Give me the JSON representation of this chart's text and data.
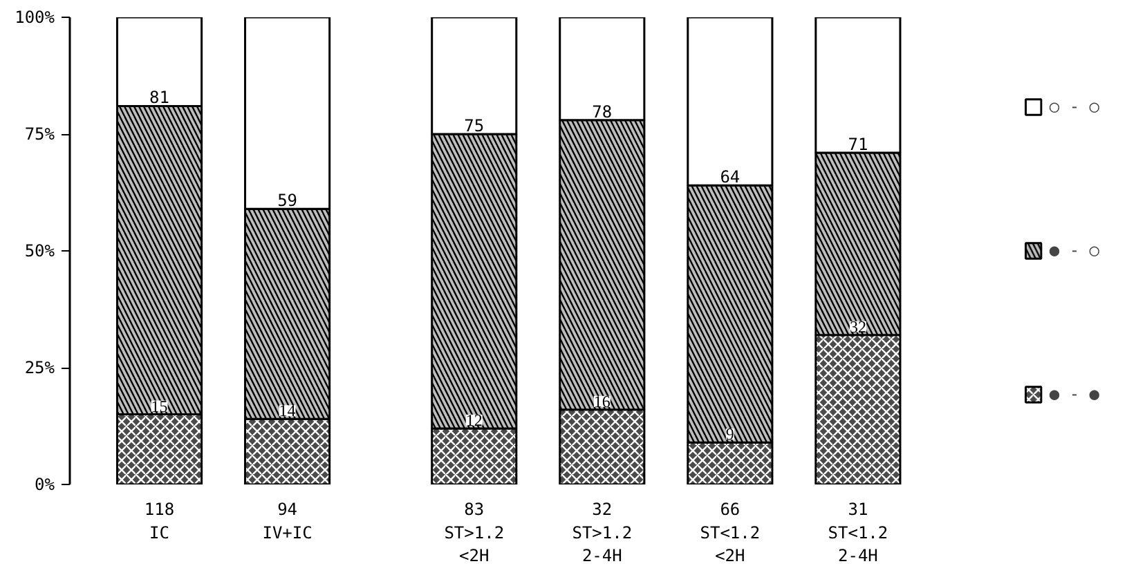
{
  "chart_data": {
    "type": "bar",
    "stacked": true,
    "categories": [
      "118\nIC",
      "94\nIV+IC",
      "83\nST>1.2\n<2H",
      "32\nST>1.2\n2-4H",
      "66\nST<1.2\n<2H",
      "31\nST<1.2\n2-4H"
    ],
    "series": [
      {
        "name": "● - ●",
        "color": "#4a4a4a",
        "values": [
          15,
          14,
          12,
          16,
          9,
          32
        ],
        "value_labels": [
          "15",
          "14",
          "12",
          "16",
          "9",
          "32"
        ]
      },
      {
        "name": "● - ○",
        "color": "#bdbdbd",
        "values": [
          66,
          45,
          63,
          62,
          55,
          39
        ]
      },
      {
        "name": "○ - ○",
        "color": "#ffffff",
        "values": [
          19,
          41,
          25,
          22,
          36,
          29
        ]
      }
    ],
    "ylim": [
      0,
      100
    ],
    "yticks": [
      {
        "value": 0,
        "label": "0%"
      },
      {
        "value": 25,
        "label": "25%"
      },
      {
        "value": 50,
        "label": "50%"
      },
      {
        "value": 75,
        "label": "75%"
      },
      {
        "value": 100,
        "label": "100%"
      }
    ],
    "annotations": [
      {
        "text": "81",
        "x": "118\nIC",
        "y": 81
      },
      {
        "text": "59",
        "x": "94\nIV+IC",
        "y": 59
      },
      {
        "text": "75",
        "x": "83\nST>1.2\n<2H",
        "y": 75
      },
      {
        "text": "78",
        "x": "32\nST>1.2\n2-4H",
        "y": 78
      },
      {
        "text": "64",
        "x": "66\nST<1.2\n<2H",
        "y": 64
      },
      {
        "text": "71",
        "x": "31\nST<1.2\n2-4H",
        "y": 71
      }
    ],
    "grid": false,
    "legend": "right"
  }
}
